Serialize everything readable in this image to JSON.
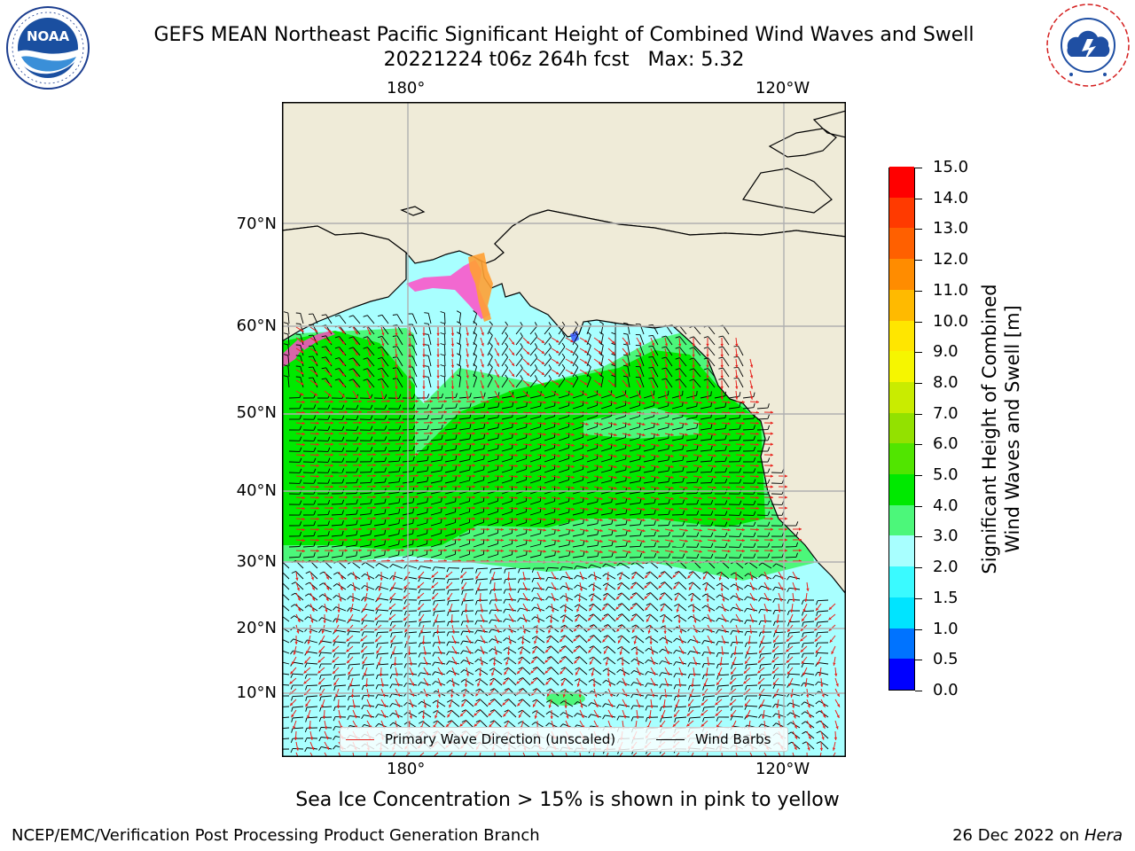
{
  "title_line1": "GEFS MEAN Northeast Pacific Significant Height of Combined Wind Waves and Swell",
  "title_line2": "20221224 t06z 264h fcst   Max: 5.32",
  "logos": {
    "left": "noaa-logo",
    "right": "nws-logo"
  },
  "map": {
    "lon_labels_top": [
      "180°",
      "120°W"
    ],
    "lon_labels_bottom": [
      "180°",
      "120°W"
    ],
    "lat_labels": [
      "70°N",
      "60°N",
      "50°N",
      "40°N",
      "30°N",
      "20°N",
      "10°N"
    ],
    "land_color": "#efebd8",
    "legend": [
      {
        "label": "Primary Wave Direction (unscaled)",
        "color": "#e8231d"
      },
      {
        "label": "Wind Barbs",
        "color": "#000000"
      }
    ]
  },
  "colorbar": {
    "title_line1": "Significant Height of Combined",
    "title_line2": "Wind Waves and Swell [m]",
    "ticks": [
      "0.0",
      "0.5",
      "1.0",
      "1.5",
      "2.0",
      "3.0",
      "4.0",
      "5.0",
      "6.0",
      "7.0",
      "8.0",
      "9.0",
      "10.0",
      "11.0",
      "12.0",
      "13.0",
      "14.0",
      "15.0"
    ],
    "colors": [
      "#0000ff",
      "#0073ff",
      "#00e4ff",
      "#3afaff",
      "#a8ffff",
      "#4cf77a",
      "#00e900",
      "#51e500",
      "#93e100",
      "#c9ec00",
      "#f6f600",
      "#ffe600",
      "#ffba00",
      "#ff8c00",
      "#ff6000",
      "#ff3a00",
      "#ff0000"
    ]
  },
  "subnote": "Sea Ice Concentration > 15% is shown in pink to yellow",
  "footer_left": "NCEP/EMC/Verification Post Processing Product Generation Branch",
  "footer_right_prefix": "26 Dec 2022 on",
  "footer_right_host": "Hera"
}
